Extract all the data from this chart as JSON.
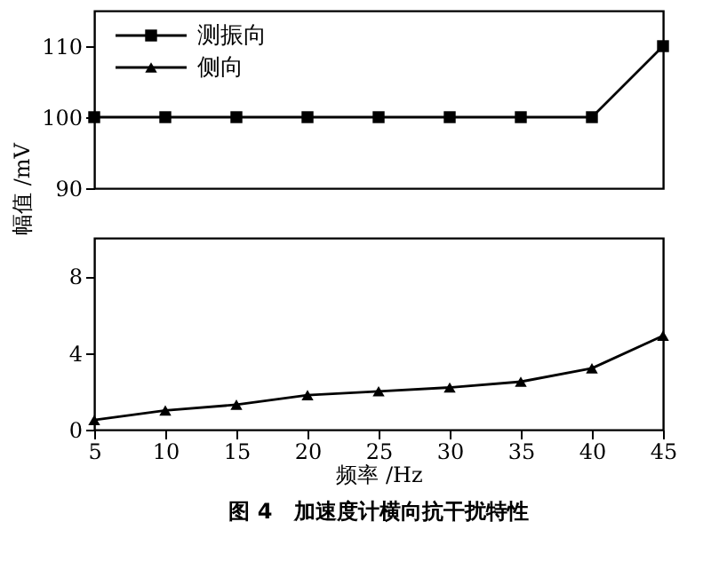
{
  "chart_data": [
    {
      "type": "line",
      "x": [
        5,
        10,
        15,
        20,
        25,
        30,
        35,
        40,
        45
      ],
      "ylabel": "幅值 /mV",
      "marker": "square",
      "legend": "top left",
      "tick_labels": "y",
      "grid": false,
      "series": [
        {
          "name": "测振向",
          "color": "#000000",
          "values": [
            100,
            100,
            100,
            100,
            100,
            100,
            100,
            100,
            110
          ]
        }
      ],
      "xlim": [
        5,
        45
      ],
      "ylim": [
        90,
        115
      ],
      "yticks": [
        90,
        100,
        110
      ]
    },
    {
      "type": "line",
      "x": [
        5,
        10,
        15,
        20,
        25,
        30,
        35,
        40,
        45
      ],
      "xlabel": "频率 /Hz",
      "marker": "triangle",
      "grid": false,
      "series": [
        {
          "name": "侧向",
          "color": "#000000",
          "values": [
            0.5,
            1.0,
            1.3,
            1.8,
            2.0,
            2.2,
            2.5,
            3.2,
            4.9
          ]
        }
      ],
      "xlim": [
        5,
        45
      ],
      "xticks": [
        5,
        10,
        15,
        20,
        25,
        30,
        35,
        40,
        45
      ],
      "ylim": [
        0,
        10
      ],
      "yticks": [
        0,
        4,
        8
      ],
      "annotations": [
        "图 4　加速度计横向抗干扰特性"
      ]
    }
  ]
}
